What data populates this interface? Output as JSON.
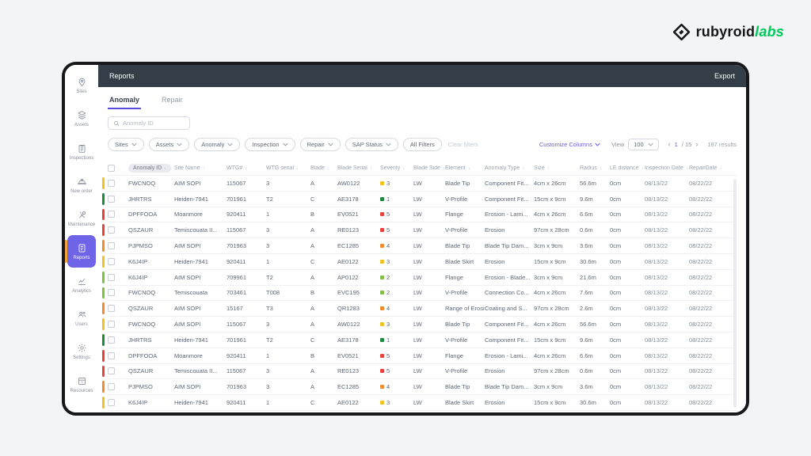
{
  "logo": {
    "text_black": "rubyroid",
    "text_green": "labs"
  },
  "sidebar": {
    "items": [
      {
        "label": "Sites",
        "icon": "sites"
      },
      {
        "label": "Assets",
        "icon": "assets"
      },
      {
        "label": "Inspections",
        "icon": "inspections"
      },
      {
        "label": "New order",
        "icon": "new-order"
      },
      {
        "label": "Maintenance",
        "icon": "maintenance"
      },
      {
        "label": "Reports",
        "icon": "reports",
        "active": true
      },
      {
        "label": "Analytics",
        "icon": "analytics"
      },
      {
        "label": "Users",
        "icon": "users"
      },
      {
        "label": "Settings",
        "icon": "settings"
      },
      {
        "label": "Resources",
        "icon": "resources"
      }
    ]
  },
  "header": {
    "title": "Reports",
    "export_label": "Export"
  },
  "tabs": {
    "anomaly": "Anomaly",
    "repair": "Repair"
  },
  "search": {
    "placeholder": "Anomaly ID"
  },
  "filters": {
    "chips": [
      "Sites",
      "Assets",
      "Anomaly",
      "Inspection",
      "Repair",
      "SAP Status"
    ],
    "all_filters_label": "All Filters",
    "clear_label": "Clear filters"
  },
  "table_controls": {
    "customize_label": "Customize Columns",
    "view_label": "View",
    "page_size": "100",
    "page_current": "1",
    "page_of": "/ 15",
    "results": "187 results"
  },
  "accent_colors": {
    "purple": "#6a5ce4",
    "yellow_bar": "#f2a33c",
    "topbar": "#333e49",
    "logo_green": "#00c95c"
  },
  "severity_colors": {
    "1": "#1f8a3e",
    "2": "#7dc243",
    "3": "#f2c21d",
    "4": "#f28b2b",
    "5": "#e8403a"
  },
  "table": {
    "columns": [
      {
        "label": "Anomaly ID",
        "field": "anomaly_id",
        "pill": true
      },
      {
        "label": "Site Name",
        "field": "site_name"
      },
      {
        "label": "WTG#",
        "field": "wtg"
      },
      {
        "label": "WTG serial",
        "field": "wtg_serial"
      },
      {
        "label": "Blade",
        "field": "blade"
      },
      {
        "label": "Blade Serial",
        "field": "blade_serial"
      },
      {
        "label": "Severity",
        "field": "severity"
      },
      {
        "label": "Blade Side",
        "field": "blade_side"
      },
      {
        "label": "Element",
        "field": "element"
      },
      {
        "label": "Anomaly Type",
        "field": "anomaly_type"
      },
      {
        "label": "Size",
        "field": "size"
      },
      {
        "label": "Radius",
        "field": "radius"
      },
      {
        "label": "LE distance",
        "field": "le_distance"
      },
      {
        "label": "Inspection Date",
        "field": "inspection_date"
      },
      {
        "label": "RepairDate",
        "field": "repair_date"
      }
    ],
    "rows": [
      {
        "anomaly_id": "FWCNOQ",
        "site_name": "AIM SOPI",
        "wtg": "115067",
        "wtg_serial": "3",
        "blade": "A",
        "blade_serial": "AW0122",
        "severity": "3",
        "blade_side": "LW",
        "element": "Blade Tip",
        "anomaly_type": "Component Fit...",
        "size": "4cm x 26cm",
        "radius": "56.6m",
        "le_distance": "0cm",
        "inspection_date": "08/13/22",
        "repair_date": "08/22/22"
      },
      {
        "anomaly_id": "JHRTRS",
        "site_name": "Heiden-7941",
        "wtg": "701961",
        "wtg_serial": "T2",
        "blade": "C",
        "blade_serial": "AE3178",
        "severity": "1",
        "blade_side": "LW",
        "element": "V-Profile",
        "anomaly_type": "Component Fit...",
        "size": "15cm x 9cm",
        "radius": "9.6m",
        "le_distance": "0cm",
        "inspection_date": "08/13/22",
        "repair_date": "08/22/22"
      },
      {
        "anomaly_id": "DPFFOOA",
        "site_name": "Moanmore",
        "wtg": "920411",
        "wtg_serial": "1",
        "blade": "B",
        "blade_serial": "EV0521",
        "severity": "5",
        "blade_side": "LW",
        "element": "Flange",
        "anomaly_type": "Erosion - Lami...",
        "size": "4cm x 26cm",
        "radius": "6.6m",
        "le_distance": "0cm",
        "inspection_date": "08/13/22",
        "repair_date": "08/22/22"
      },
      {
        "anomaly_id": "QSZAUR",
        "site_name": "Temiscouata II...",
        "wtg": "115067",
        "wtg_serial": "3",
        "blade": "A",
        "blade_serial": "RE0123",
        "severity": "5",
        "blade_side": "LW",
        "element": "V-Profile",
        "anomaly_type": "Erosion",
        "size": "97cm x 28cm",
        "radius": "0.6m",
        "le_distance": "0cm",
        "inspection_date": "08/13/22",
        "repair_date": "08/22/22"
      },
      {
        "anomaly_id": "PJPMSO",
        "site_name": "AIM SOPI",
        "wtg": "701963",
        "wtg_serial": "3",
        "blade": "A",
        "blade_serial": "EC1285",
        "severity": "4",
        "blade_side": "LW",
        "element": "Blade Tip",
        "anomaly_type": "Blade Tip Dam...",
        "size": "3cm x 9cm",
        "radius": "3.6m",
        "le_distance": "0cm",
        "inspection_date": "08/13/22",
        "repair_date": "08/22/22"
      },
      {
        "anomaly_id": "K6J4IP",
        "site_name": "Heiden-7941",
        "wtg": "920411",
        "wtg_serial": "1",
        "blade": "C",
        "blade_serial": "AE0122",
        "severity": "3",
        "blade_side": "LW",
        "element": "Blade Skirt",
        "anomaly_type": "Erosion",
        "size": "15cm x 9cm",
        "radius": "30.6m",
        "le_distance": "0cm",
        "inspection_date": "08/13/22",
        "repair_date": "08/22/22"
      },
      {
        "anomaly_id": "K6J4IP",
        "site_name": "AIM SOPI",
        "wtg": "709961",
        "wtg_serial": "T2",
        "blade": "A",
        "blade_serial": "AP0122",
        "severity": "2",
        "blade_side": "LW",
        "element": "Flange",
        "anomaly_type": "Erosion - Blade...",
        "size": "3cm x 9cm",
        "radius": "21.6m",
        "le_distance": "0cm",
        "inspection_date": "08/13/22",
        "repair_date": "08/22/22"
      },
      {
        "anomaly_id": "FWCNOQ",
        "site_name": "Temiscouata",
        "wtg": "703461",
        "wtg_serial": "T008",
        "blade": "B",
        "blade_serial": "EVC195",
        "severity": "2",
        "blade_side": "LW",
        "element": "V-Profile",
        "anomaly_type": "Connection Co...",
        "size": "4cm x 26cm",
        "radius": "7.6m",
        "le_distance": "0cm",
        "inspection_date": "08/13/22",
        "repair_date": "08/22/22"
      },
      {
        "anomaly_id": "QSZAUR",
        "site_name": "AIM SOPI",
        "wtg": "15167",
        "wtg_serial": "T3",
        "blade": "A",
        "blade_serial": "QR1283",
        "severity": "4",
        "blade_side": "LW",
        "element": "Range of Erosi...",
        "anomaly_type": "Coating and S...",
        "size": "97cm x 28cm",
        "radius": "2.6m",
        "le_distance": "0cm",
        "inspection_date": "08/13/22",
        "repair_date": "08/22/22"
      },
      {
        "anomaly_id": "FWCNOQ",
        "site_name": "AIM SOPI",
        "wtg": "115067",
        "wtg_serial": "3",
        "blade": "A",
        "blade_serial": "AW0122",
        "severity": "3",
        "blade_side": "LW",
        "element": "Blade Tip",
        "anomaly_type": "Component Fit...",
        "size": "4cm x 26cm",
        "radius": "56.6m",
        "le_distance": "0cm",
        "inspection_date": "08/13/22",
        "repair_date": "08/22/22"
      },
      {
        "anomaly_id": "JHRTRS",
        "site_name": "Heiden-7941",
        "wtg": "701961",
        "wtg_serial": "T2",
        "blade": "C",
        "blade_serial": "AE3178",
        "severity": "1",
        "blade_side": "LW",
        "element": "V-Profile",
        "anomaly_type": "Component Fit...",
        "size": "15cm x 9cm",
        "radius": "9.6m",
        "le_distance": "0cm",
        "inspection_date": "08/13/22",
        "repair_date": "08/22/22"
      },
      {
        "anomaly_id": "DPFFOOA",
        "site_name": "Moanmore",
        "wtg": "920411",
        "wtg_serial": "1",
        "blade": "B",
        "blade_serial": "EV0521",
        "severity": "5",
        "blade_side": "LW",
        "element": "Flange",
        "anomaly_type": "Erosion - Lami...",
        "size": "4cm x 26cm",
        "radius": "6.6m",
        "le_distance": "0cm",
        "inspection_date": "08/13/22",
        "repair_date": "08/22/22"
      },
      {
        "anomaly_id": "QSZAUR",
        "site_name": "Temiscouata II...",
        "wtg": "115067",
        "wtg_serial": "3",
        "blade": "A",
        "blade_serial": "RE0123",
        "severity": "5",
        "blade_side": "LW",
        "element": "V-Profile",
        "anomaly_type": "Erosion",
        "size": "97cm x 28cm",
        "radius": "0.6m",
        "le_distance": "0cm",
        "inspection_date": "08/13/22",
        "repair_date": "08/22/22"
      },
      {
        "anomaly_id": "PJPMSO",
        "site_name": "AIM SOPI",
        "wtg": "701963",
        "wtg_serial": "3",
        "blade": "A",
        "blade_serial": "EC1285",
        "severity": "4",
        "blade_side": "LW",
        "element": "Blade Tip",
        "anomaly_type": "Blade Tip Dam...",
        "size": "3cm x 9cm",
        "radius": "3.6m",
        "le_distance": "0cm",
        "inspection_date": "08/13/22",
        "repair_date": "08/22/22"
      },
      {
        "anomaly_id": "K6J4IP",
        "site_name": "Heiden-7941",
        "wtg": "920411",
        "wtg_serial": "1",
        "blade": "C",
        "blade_serial": "AE0122",
        "severity": "3",
        "blade_side": "LW",
        "element": "Blade Skirt",
        "anomaly_type": "Erosion",
        "size": "15cm x 9cm",
        "radius": "30.6m",
        "le_distance": "0cm",
        "inspection_date": "08/13/22",
        "repair_date": "08/22/22"
      }
    ]
  }
}
